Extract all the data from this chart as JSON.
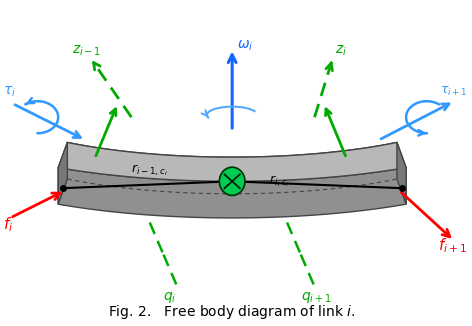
{
  "figsize": [
    4.72,
    3.26
  ],
  "dpi": 100,
  "background_color": "#ffffff",
  "caption": "Fig. 2.   Free body diagram of link $i$.",
  "link_gray": "#909090",
  "link_top_gray": "#b8b8b8",
  "link_side_gray": "#787878",
  "link_edge": "#444444",
  "com_green": "#00cc55",
  "arrow_red": "#ff0000",
  "arrow_green": "#00aa00",
  "arrow_blue": "#1166ff",
  "arrow_cyan": "#3399ff",
  "arrow_black": "#000000"
}
